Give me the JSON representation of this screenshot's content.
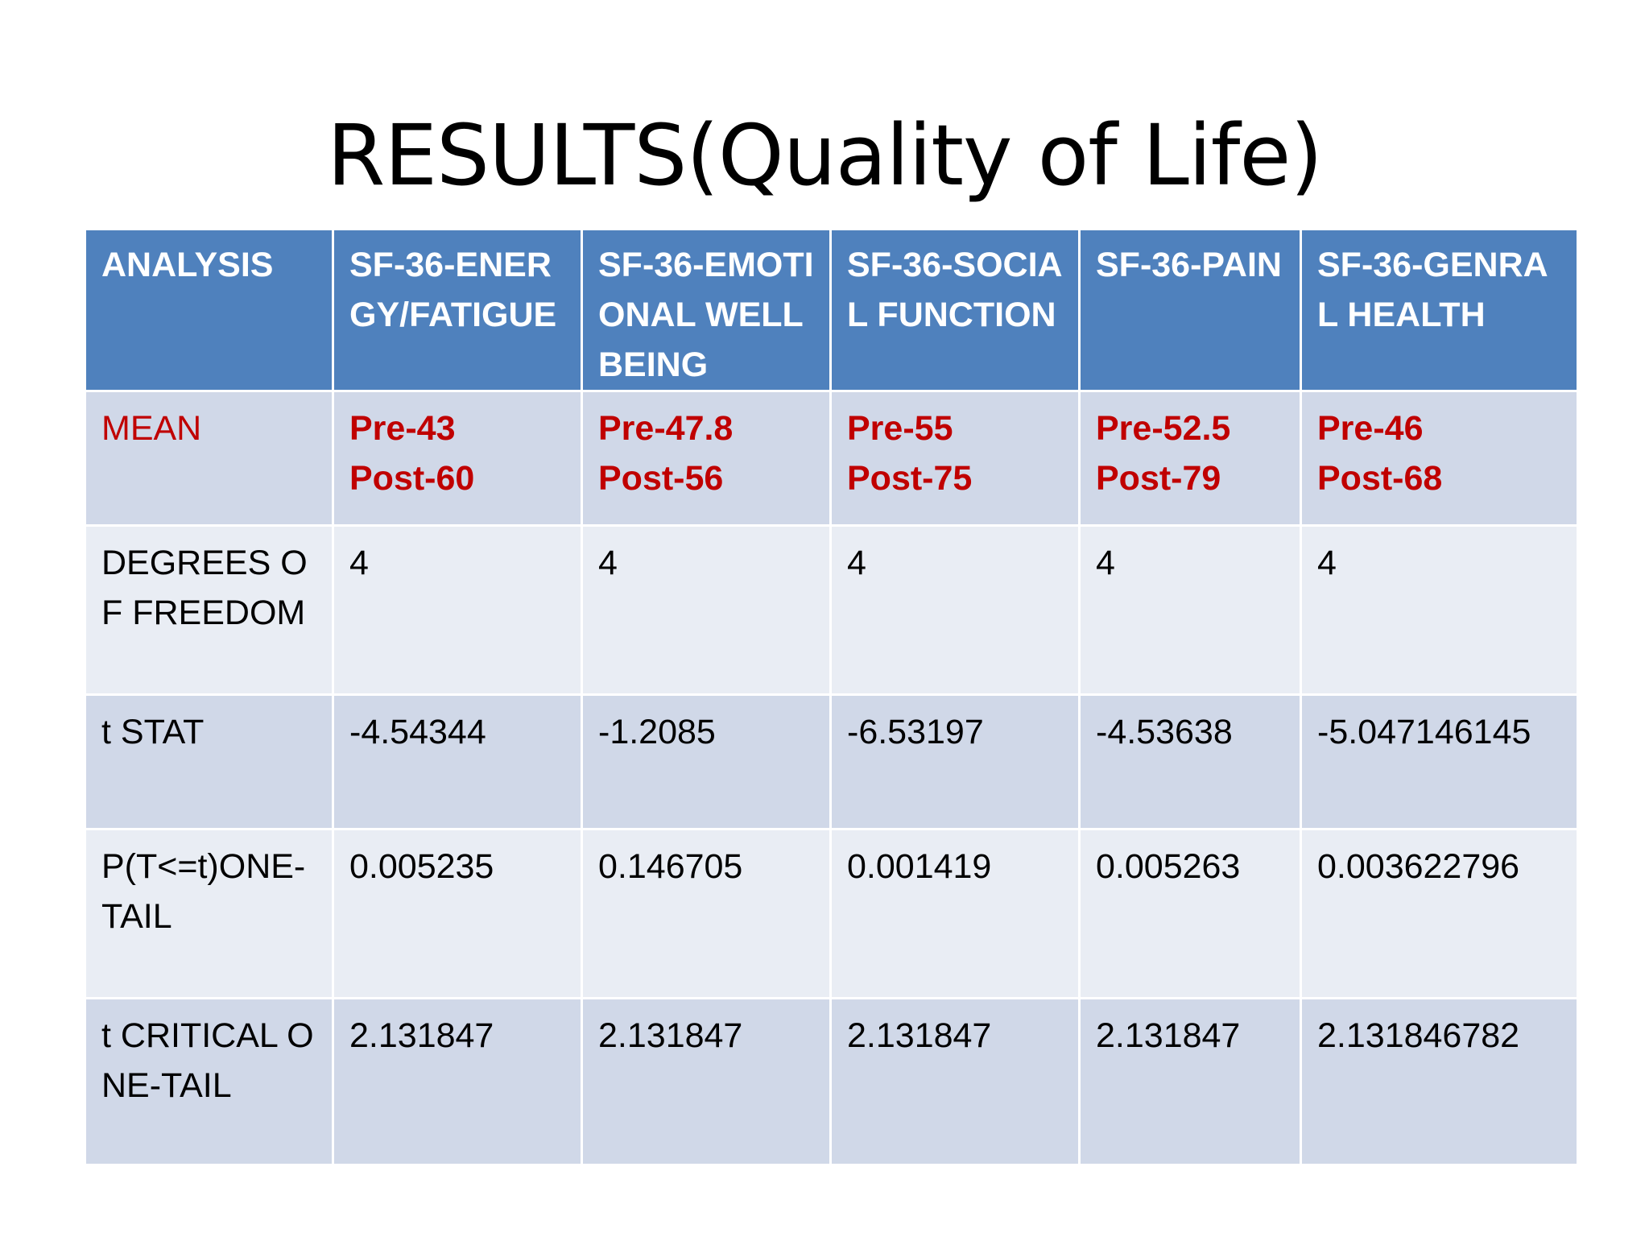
{
  "title": "RESULTS(Quality of Life)",
  "table": {
    "headers": [
      "ANALYSIS",
      "SF-36-ENERGY/FATIGUE",
      "SF-36-EMOTIONAL WELL BEING",
      "SF-36-SOCIAL FUNCTION",
      "SF-36-PAIN",
      "SF-36-GENRAL HEALTH"
    ],
    "mean": {
      "label": "MEAN",
      "values": [
        {
          "pre": "Pre-43",
          "post": "Post-60"
        },
        {
          "pre": "Pre-47.8",
          "post": "Post-56"
        },
        {
          "pre": "Pre-55",
          "post": "Post-75"
        },
        {
          "pre": "Pre-52.5",
          "post": "Post-79"
        },
        {
          "pre": "Pre-46",
          "post": "Post-68"
        }
      ]
    },
    "rows": [
      {
        "label": "DEGREES OF FREEDOM",
        "values": [
          "4",
          "4",
          "4",
          "4",
          "4"
        ]
      },
      {
        "label": "t STAT",
        "values": [
          "-4.54344",
          "-1.2085",
          "-6.53197",
          "-4.53638",
          "-5.047146145"
        ]
      },
      {
        "label": "P(T<=t)ONE-TAIL",
        "values": [
          "0.005235",
          "0.146705",
          "0.001419",
          "0.005263",
          "0.003622796"
        ]
      },
      {
        "label": "t CRITICAL ONE-TAIL",
        "values": [
          "2.131847",
          "2.131847",
          "2.131847",
          "2.131847",
          "2.131846782"
        ]
      }
    ]
  },
  "colors": {
    "header_bg": "#4f81bd",
    "row_dark": "#d0d8e8",
    "row_light": "#e9edf4",
    "mean_red": "#c00000"
  }
}
